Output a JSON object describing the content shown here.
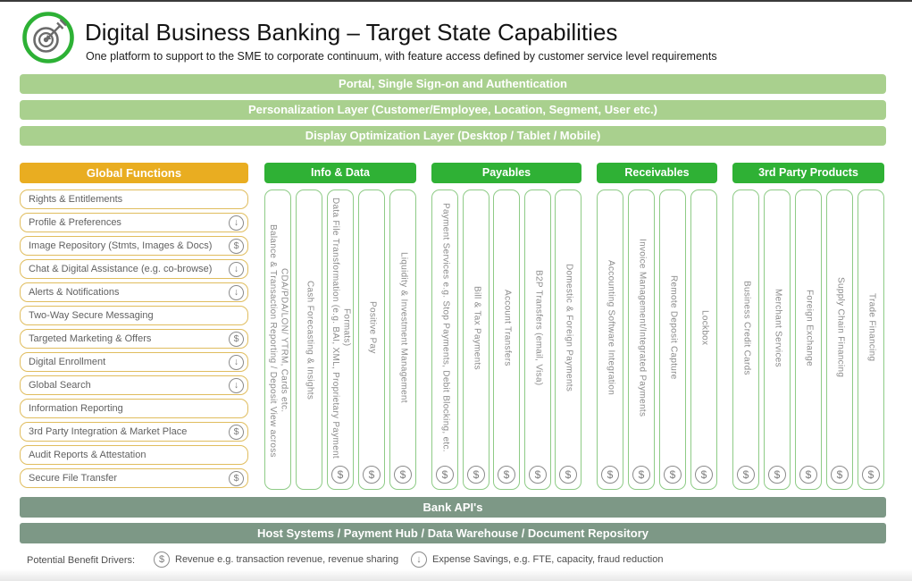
{
  "header": {
    "title": "Digital Business Banking – Target State Capabilities",
    "subtitle": "One platform to support to the SME to corporate continuum, with feature access defined by customer service level requirements",
    "logo_icon": "target-dart-logo"
  },
  "layers": [
    "Portal, Single Sign-on and Authentication",
    "Personalization Layer (Customer/Employee, Location, Segment, User etc.)",
    "Display Optimization Layer (Desktop / Tablet / Mobile)"
  ],
  "global_functions": {
    "title": "Global Functions",
    "items": [
      {
        "label": "Rights & Entitlements",
        "benefit": null
      },
      {
        "label": "Profile & Preferences",
        "benefit": "expense"
      },
      {
        "label": "Image Repository (Stmts, Images & Docs)",
        "benefit": "revenue"
      },
      {
        "label": "Chat & Digital Assistance (e.g. co-browse)",
        "benefit": "expense"
      },
      {
        "label": "Alerts & Notifications",
        "benefit": "expense"
      },
      {
        "label": "Two-Way Secure Messaging",
        "benefit": null
      },
      {
        "label": "Targeted Marketing & Offers",
        "benefit": "revenue"
      },
      {
        "label": "Digital Enrollment",
        "benefit": "expense"
      },
      {
        "label": "Global Search",
        "benefit": "expense"
      },
      {
        "label": "Information Reporting",
        "benefit": null
      },
      {
        "label": "3rd Party Integration & Market Place",
        "benefit": "revenue"
      },
      {
        "label": "Audit Reports & Attestation",
        "benefit": null
      },
      {
        "label": "Secure File Transfer",
        "benefit": "revenue"
      }
    ]
  },
  "capability_groups": [
    {
      "title": "Info & Data",
      "columns": [
        {
          "label": "Balance & Transaction Reporting / Deposit View across CDA/PDA/LON/ YTRM, Cards etc.",
          "benefit": null
        },
        {
          "label": "Cash Forecasting & Insights",
          "benefit": null
        },
        {
          "label": "Data File Transformation (e.g. BAI, XML, Proprietary Payment Formats)",
          "benefit": "revenue"
        },
        {
          "label": "Positive Pay",
          "benefit": "revenue"
        },
        {
          "label": "Liquidity & Investment Management",
          "benefit": "revenue"
        }
      ]
    },
    {
      "title": "Payables",
      "columns": [
        {
          "label": "Payment Services e.g. Stop Payments, Debit Blocking, etc.",
          "benefit": "revenue"
        },
        {
          "label": "Bill & Tax Payments",
          "benefit": "revenue"
        },
        {
          "label": "Account Transfers",
          "benefit": "revenue"
        },
        {
          "label": "B2P Transfers (email, Visa)",
          "benefit": "revenue"
        },
        {
          "label": "Domestic & Foreign Payments",
          "benefit": "revenue"
        }
      ]
    },
    {
      "title": "Receivables",
      "columns": [
        {
          "label": "Accounting Software Integration",
          "benefit": "revenue"
        },
        {
          "label": "Invoice Management/Integrated Payments",
          "benefit": "revenue"
        },
        {
          "label": "Remote Deposit Capture",
          "benefit": "revenue"
        },
        {
          "label": "Lockbox",
          "benefit": "revenue"
        }
      ]
    },
    {
      "title": "3rd Party Products",
      "columns": [
        {
          "label": "Business Credit Cards",
          "benefit": "revenue"
        },
        {
          "label": "Merchant Services",
          "benefit": "revenue"
        },
        {
          "label": "Foreign Exchange",
          "benefit": "revenue"
        },
        {
          "label": "Supply Chain Financing",
          "benefit": "revenue"
        },
        {
          "label": "Trade Financing",
          "benefit": "revenue"
        }
      ]
    }
  ],
  "platform_layers": [
    "Bank API's",
    "Host Systems / Payment Hub / Data Warehouse / Document Repository"
  ],
  "legend": {
    "title": "Potential Benefit Drivers:",
    "items": [
      {
        "icon": "dollar-circle-icon",
        "type": "revenue",
        "label": "Revenue e.g. transaction revenue, revenue sharing"
      },
      {
        "icon": "arrow-down-circle-icon",
        "type": "expense",
        "label": "Expense Savings, e.g. FTE, capacity, fraud reduction"
      }
    ]
  },
  "benefit_icons": {
    "revenue": "$",
    "expense": "↓"
  },
  "colors": {
    "light_green": "#a9d08e",
    "bright_green": "#2fb135",
    "gold": "#e9ad21",
    "sage": "#7d9886",
    "border_gold": "#e0bd5e",
    "border_green": "#8ecb86",
    "gray_icon": "#8b8b8b",
    "gray_text": "#8c8c8c",
    "item_text": "#616161"
  }
}
